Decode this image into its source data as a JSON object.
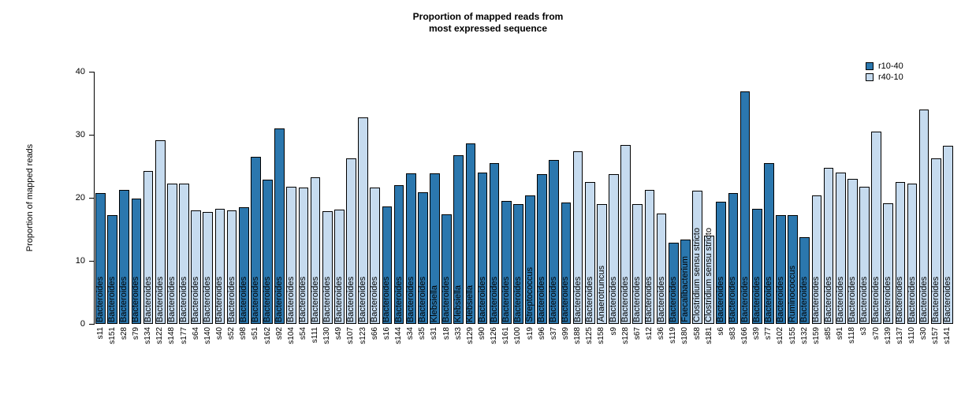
{
  "title": {
    "line1": "Proportion of mapped reads from",
    "line2": "most expressed sequence"
  },
  "y_axis": {
    "label": "Proportion of mapped reads",
    "ticks": [
      0,
      10,
      20,
      30,
      40
    ]
  },
  "legend": [
    {
      "label": "r10-40",
      "color": "#2b77ae"
    },
    {
      "label": "r40-10",
      "color": "#c6dbef"
    }
  ],
  "chart_data": {
    "type": "bar",
    "title": "Proportion of mapped reads from most expressed sequence",
    "xlabel": "",
    "ylabel": "Proportion of mapped reads",
    "ylim": [
      0,
      40
    ],
    "grid": false,
    "legend_position": "top-right",
    "series_names": [
      "r10-40",
      "r40-10"
    ],
    "bars": [
      {
        "x": "s11",
        "value": 20.7,
        "series": "r10-40",
        "label": "Bacteroides"
      },
      {
        "x": "s151",
        "value": 17.3,
        "series": "r10-40",
        "label": "Bacteroides"
      },
      {
        "x": "s28",
        "value": 21.2,
        "series": "r10-40",
        "label": "Bacteroides"
      },
      {
        "x": "s79",
        "value": 19.9,
        "series": "r10-40",
        "label": "Bacteroides"
      },
      {
        "x": "s134",
        "value": 24.2,
        "series": "r40-10",
        "label": "Bacteroides"
      },
      {
        "x": "s122",
        "value": 29.1,
        "series": "r40-10",
        "label": "Bacteroides"
      },
      {
        "x": "s148",
        "value": 22.3,
        "series": "r40-10",
        "label": "Bacteroides"
      },
      {
        "x": "s177",
        "value": 22.2,
        "series": "r40-10",
        "label": "Bacteroides"
      },
      {
        "x": "s64",
        "value": 18.0,
        "series": "r40-10",
        "label": "Bacteroides"
      },
      {
        "x": "s140",
        "value": 17.8,
        "series": "r40-10",
        "label": "Bacteroides"
      },
      {
        "x": "s40",
        "value": 18.3,
        "series": "r40-10",
        "label": "Bacteroides"
      },
      {
        "x": "s52",
        "value": 18.0,
        "series": "r40-10",
        "label": "Bacteroides"
      },
      {
        "x": "s98",
        "value": 18.5,
        "series": "r10-40",
        "label": "Bacteroides"
      },
      {
        "x": "s51",
        "value": 26.5,
        "series": "r10-40",
        "label": "Bacteroides"
      },
      {
        "x": "s162",
        "value": 22.9,
        "series": "r10-40",
        "label": "Bacteroides"
      },
      {
        "x": "s92",
        "value": 31.0,
        "series": "r10-40",
        "label": "Bacteroides"
      },
      {
        "x": "s104",
        "value": 21.8,
        "series": "r40-10",
        "label": "Bacteroides"
      },
      {
        "x": "s54",
        "value": 21.6,
        "series": "r40-10",
        "label": "Bacteroides"
      },
      {
        "x": "s111",
        "value": 23.2,
        "series": "r40-10",
        "label": "Bacteroides"
      },
      {
        "x": "s130",
        "value": 17.9,
        "series": "r40-10",
        "label": "Bacteroides"
      },
      {
        "x": "s49",
        "value": 18.1,
        "series": "r40-10",
        "label": "Bacteroides"
      },
      {
        "x": "s107",
        "value": 26.2,
        "series": "r40-10",
        "label": "Bacteroides"
      },
      {
        "x": "s123",
        "value": 32.8,
        "series": "r40-10",
        "label": "Bacteroides"
      },
      {
        "x": "s66",
        "value": 21.6,
        "series": "r40-10",
        "label": "Bacteroides"
      },
      {
        "x": "s16",
        "value": 18.6,
        "series": "r10-40",
        "label": "Bacteroides"
      },
      {
        "x": "s144",
        "value": 22.0,
        "series": "r10-40",
        "label": "Bacteroides"
      },
      {
        "x": "s34",
        "value": 23.9,
        "series": "r10-40",
        "label": "Bacteroides"
      },
      {
        "x": "s35",
        "value": 20.9,
        "series": "r10-40",
        "label": "Bacteroides"
      },
      {
        "x": "s31",
        "value": 23.9,
        "series": "r10-40",
        "label": "Klebsiella"
      },
      {
        "x": "s18",
        "value": 17.4,
        "series": "r10-40",
        "label": "Bacteroides"
      },
      {
        "x": "s33",
        "value": 26.7,
        "series": "r10-40",
        "label": "Klebsiella"
      },
      {
        "x": "s129",
        "value": 28.6,
        "series": "r10-40",
        "label": "Klebsiella"
      },
      {
        "x": "s90",
        "value": 24.0,
        "series": "r10-40",
        "label": "Bacteroides"
      },
      {
        "x": "s126",
        "value": 25.5,
        "series": "r10-40",
        "label": "Bacteroides"
      },
      {
        "x": "s161",
        "value": 19.5,
        "series": "r10-40",
        "label": "Bacteroides"
      },
      {
        "x": "s100",
        "value": 19.0,
        "series": "r10-40",
        "label": "Bacteroides"
      },
      {
        "x": "s19",
        "value": 20.4,
        "series": "r10-40",
        "label": "Streptococcus"
      },
      {
        "x": "s96",
        "value": 23.8,
        "series": "r10-40",
        "label": "Bacteroides"
      },
      {
        "x": "s37",
        "value": 26.0,
        "series": "r10-40",
        "label": "Bacteroides"
      },
      {
        "x": "s99",
        "value": 19.3,
        "series": "r10-40",
        "label": "Bacteroides"
      },
      {
        "x": "s188",
        "value": 27.4,
        "series": "r40-10",
        "label": "Bacteroides"
      },
      {
        "x": "s125",
        "value": 22.5,
        "series": "r40-10",
        "label": "Bacteroides"
      },
      {
        "x": "s158",
        "value": 19.0,
        "series": "r40-10",
        "label": "Anaerotruncus"
      },
      {
        "x": "s9",
        "value": 23.8,
        "series": "r40-10",
        "label": "Bacteroides"
      },
      {
        "x": "s128",
        "value": 28.4,
        "series": "r40-10",
        "label": "Bacteroides"
      },
      {
        "x": "s67",
        "value": 19.0,
        "series": "r40-10",
        "label": "Bacteroides"
      },
      {
        "x": "s12",
        "value": 21.2,
        "series": "r40-10",
        "label": "Bacteroides"
      },
      {
        "x": "s36",
        "value": 17.5,
        "series": "r40-10",
        "label": "Bacteroides"
      },
      {
        "x": "s119",
        "value": 12.9,
        "series": "r10-40",
        "label": "Bacteroides"
      },
      {
        "x": "s180",
        "value": 13.4,
        "series": "r10-40",
        "label": "Faecalibacterium"
      },
      {
        "x": "s58",
        "value": 21.1,
        "series": "r40-10",
        "label": "Clostridium sensu stricto"
      },
      {
        "x": "s181",
        "value": 14.0,
        "series": "r40-10",
        "label": "Clostridium sensu stricto"
      },
      {
        "x": "s6",
        "value": 19.4,
        "series": "r10-40",
        "label": "Bacteroides"
      },
      {
        "x": "s83",
        "value": 20.7,
        "series": "r10-40",
        "label": "Bacteroides"
      },
      {
        "x": "s166",
        "value": 36.9,
        "series": "r10-40",
        "label": "Bacteroides"
      },
      {
        "x": "s39",
        "value": 18.3,
        "series": "r10-40",
        "label": "Bacteroides"
      },
      {
        "x": "s77",
        "value": 25.5,
        "series": "r10-40",
        "label": "Bacteroides"
      },
      {
        "x": "s102",
        "value": 17.3,
        "series": "r10-40",
        "label": "Bacteroides"
      },
      {
        "x": "s155",
        "value": 17.2,
        "series": "r10-40",
        "label": "Ruminococcus"
      },
      {
        "x": "s132",
        "value": 13.8,
        "series": "r10-40",
        "label": "Bacteroides"
      },
      {
        "x": "s159",
        "value": 20.4,
        "series": "r40-10",
        "label": "Bacteroides"
      },
      {
        "x": "s85",
        "value": 24.8,
        "series": "r40-10",
        "label": "Bacteroides"
      },
      {
        "x": "s91",
        "value": 24.0,
        "series": "r40-10",
        "label": "Bacteroides"
      },
      {
        "x": "s118",
        "value": 23.0,
        "series": "r40-10",
        "label": "Bacteroides"
      },
      {
        "x": "s3",
        "value": 21.8,
        "series": "r40-10",
        "label": "Bacteroides"
      },
      {
        "x": "s70",
        "value": 30.5,
        "series": "r40-10",
        "label": "Bacteroides"
      },
      {
        "x": "s139",
        "value": 19.1,
        "series": "r40-10",
        "label": "Bacteroides"
      },
      {
        "x": "s137",
        "value": 22.5,
        "series": "r40-10",
        "label": "Bacteroides"
      },
      {
        "x": "s110",
        "value": 22.3,
        "series": "r40-10",
        "label": "Bacteroides"
      },
      {
        "x": "s30",
        "value": 34.0,
        "series": "r40-10",
        "label": "Bacteroides"
      },
      {
        "x": "s157",
        "value": 26.3,
        "series": "r40-10",
        "label": "Bacteroides"
      },
      {
        "x": "s141",
        "value": 28.3,
        "series": "r40-10",
        "label": "Bacteroides"
      }
    ]
  }
}
